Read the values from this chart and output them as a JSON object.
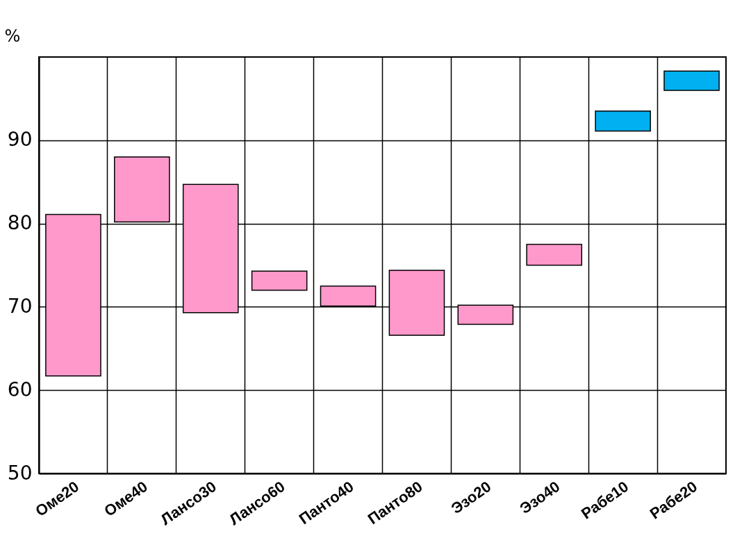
{
  "chart_data": {
    "type": "bar",
    "ylabel": "%",
    "categories": [
      "Оме20",
      "Оме40",
      "Лансо30",
      "Лансо60",
      "Панто40",
      "Панто80",
      "Эзо20",
      "Эзо40",
      "Рабе10",
      "Рабе20"
    ],
    "base": [
      61.7,
      80.2,
      69.3,
      72.0,
      70.1,
      66.6,
      67.9,
      75.0,
      91.1,
      96.0
    ],
    "values": [
      19.4,
      7.8,
      15.4,
      2.3,
      2.4,
      7.8,
      2.3,
      2.5,
      2.4,
      2.3
    ],
    "colors": [
      "#ff99cc",
      "#ff99cc",
      "#ff99cc",
      "#ff99cc",
      "#ff99cc",
      "#ff99cc",
      "#ff99cc",
      "#ff99cc",
      "#00b0f0",
      "#00b0f0"
    ],
    "ylim": [
      50,
      100
    ],
    "yticks": [
      50,
      60,
      70,
      80,
      90
    ],
    "grid": true
  }
}
